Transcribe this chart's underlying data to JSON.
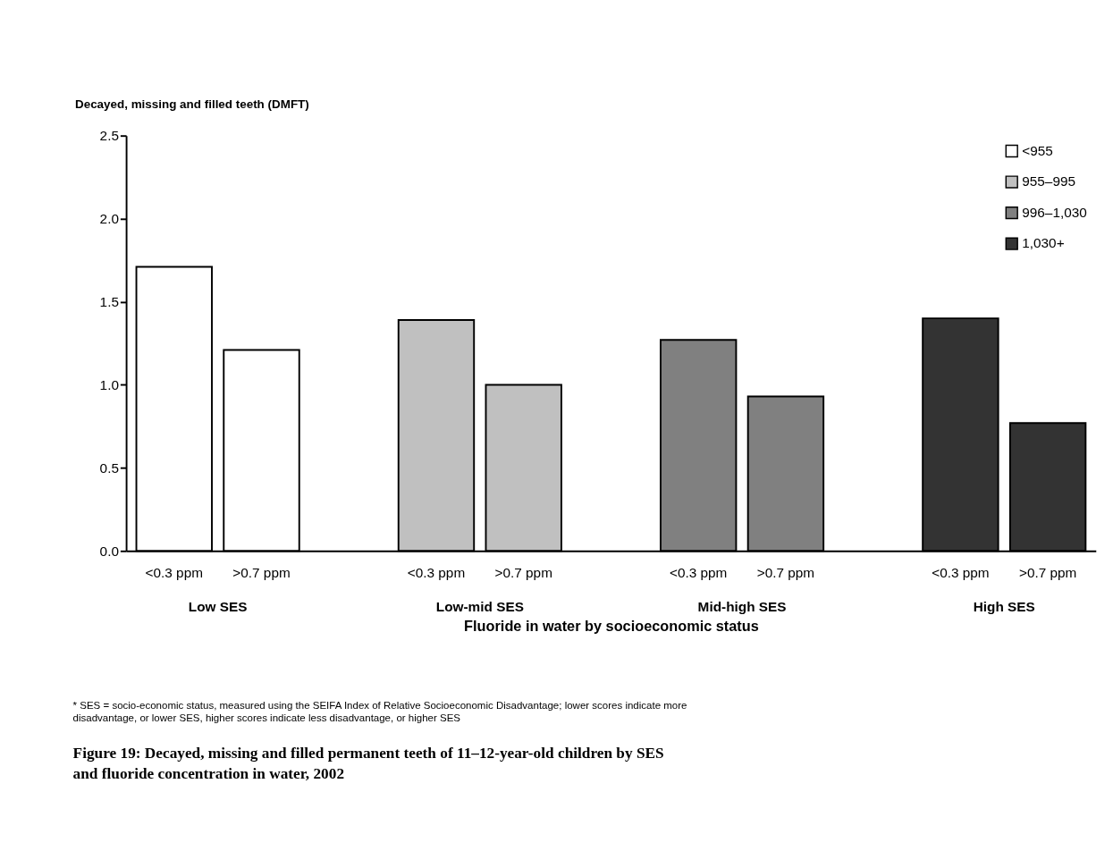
{
  "chart_data": {
    "type": "bar",
    "title": "Figure 19: Decayed, missing and filled permanent teeth of 11–12-year-old children by SES and fluoride concentration in water, 2002",
    "ylabel": "Decayed, missing and filled teeth (DMFT)",
    "xlabel": "Fluoride in water by socioeconomic status",
    "categories": [
      "<0.3 ppm",
      ">0.7 ppm",
      "<0.3 ppm",
      ">0.7 ppm",
      "<0.3 ppm",
      ">0.7 ppm",
      "<0.3 ppm",
      ">0.7 ppm"
    ],
    "series": [
      {
        "name": "<955",
        "color": "#ffffff",
        "values": [
          1.71,
          1.21,
          null,
          null,
          null,
          null,
          null,
          null
        ]
      },
      {
        "name": "955–995",
        "color": "#c0c0c0",
        "values": [
          null,
          null,
          1.39,
          1.0,
          null,
          null,
          null,
          null
        ]
      },
      {
        "name": "996–1,030",
        "color": "#808080",
        "values": [
          null,
          null,
          null,
          null,
          1.27,
          0.93,
          null,
          null
        ]
      },
      {
        "name": "1,030+",
        "color": "#333333",
        "values": [
          null,
          null,
          null,
          null,
          null,
          null,
          1.4,
          0.77
        ]
      }
    ],
    "annotations": [
      "Low SES",
      "Low-mid SES",
      "Mid-high SES",
      "High SES",
      "* SES = socio-economic status, measured using the SEIFA Index of Relative Socioeconomic Disadvantage; lower scores indicate more disadvantage, or lower SES, higher scores indicate less disadvantage, or higher SES"
    ],
    "ylim": [
      0,
      2.5
    ],
    "yticks": [
      {
        "value": 0,
        "label": "0.0"
      },
      {
        "value": 0.5,
        "label": "0.5"
      },
      {
        "value": 1,
        "label": "1.0"
      },
      {
        "value": 1.5,
        "label": "1.5"
      },
      {
        "value": 2,
        "label": "2.0"
      },
      {
        "value": 2.5,
        "label": "2.5"
      }
    ],
    "grid": false,
    "legend": "top right"
  }
}
